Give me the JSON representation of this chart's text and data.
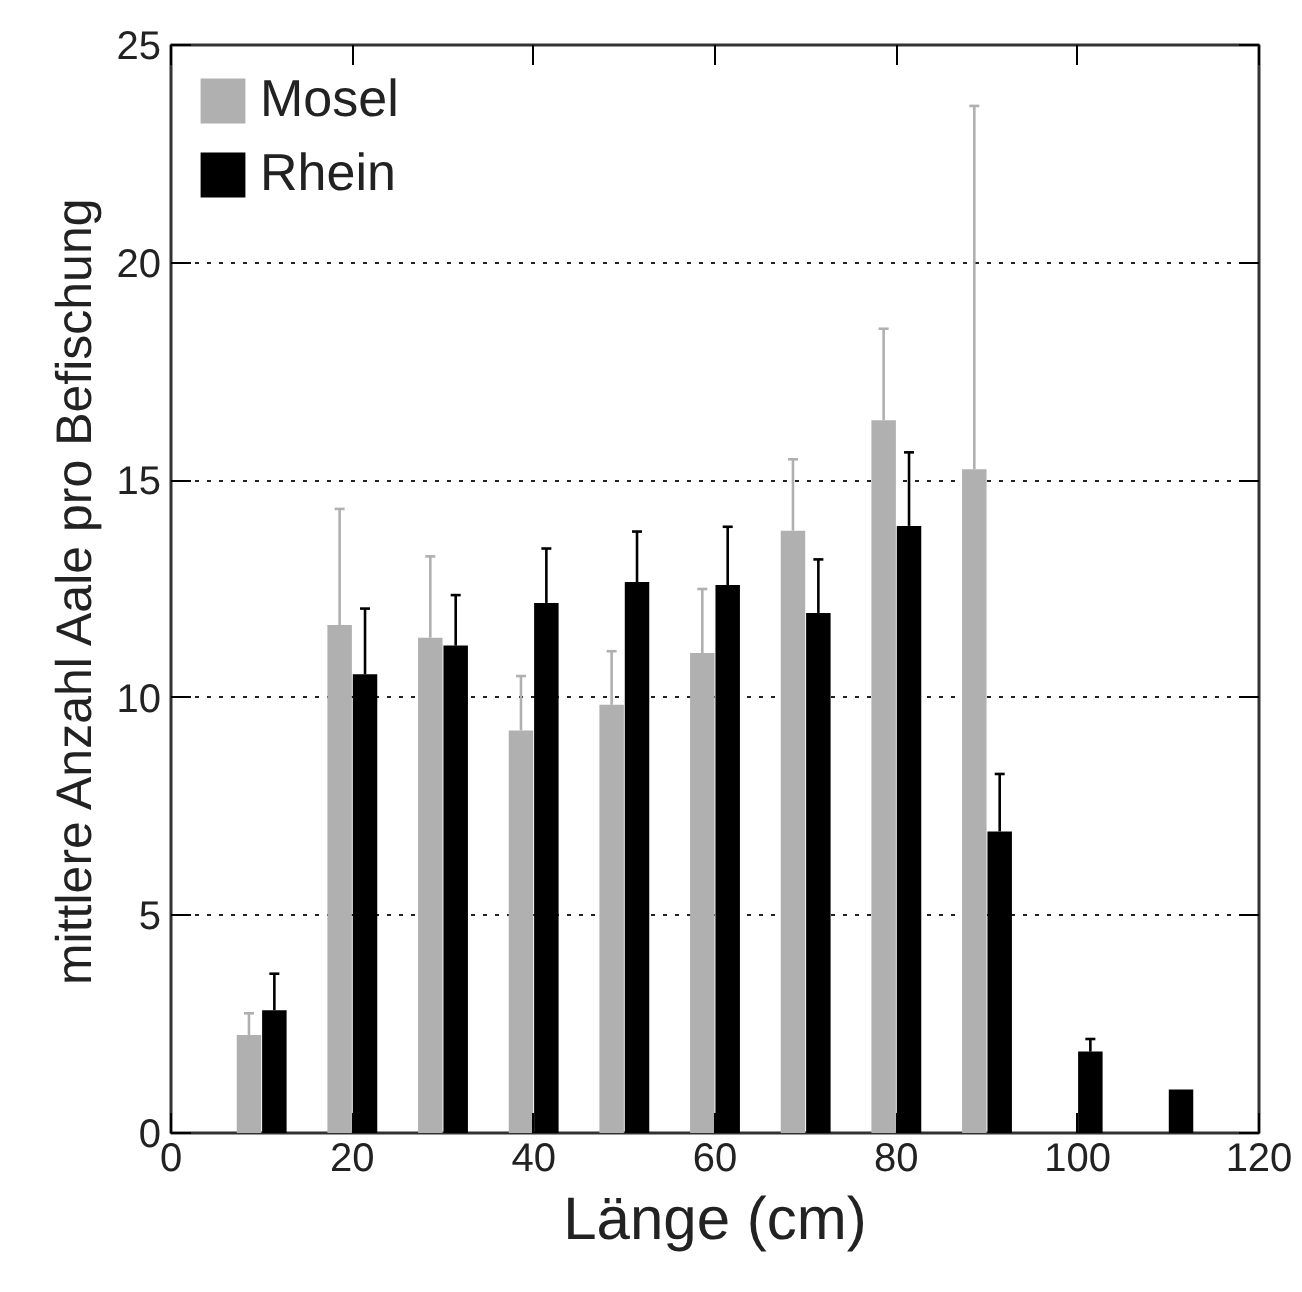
{
  "chart_data": {
    "type": "bar",
    "xlabel": "Länge (cm)",
    "ylabel": "mittlere Anzahl Aale pro Befischung",
    "x": [
      10,
      20,
      30,
      40,
      50,
      60,
      70,
      80,
      90,
      100,
      110
    ],
    "series": [
      {
        "name": "Mosel",
        "color": "#b0b0b0",
        "values": [
          2.25,
          11.67,
          11.38,
          9.25,
          9.84,
          11.03,
          13.84,
          16.38,
          15.25,
          null,
          null
        ],
        "errors": [
          [
            2.25,
            2.75
          ],
          [
            11.67,
            14.34
          ],
          [
            11.38,
            13.25
          ],
          [
            9.25,
            10.5
          ],
          [
            9.84,
            11.07
          ],
          [
            11.03,
            12.5
          ],
          [
            13.84,
            15.48
          ],
          [
            16.38,
            18.48
          ],
          [
            15.25,
            23.6
          ],
          null,
          null
        ]
      },
      {
        "name": "Rhein",
        "color": "#000000",
        "values": [
          2.82,
          10.54,
          11.2,
          12.18,
          12.66,
          12.59,
          11.95,
          13.95,
          6.93,
          1.87,
          1.0
        ],
        "errors": [
          [
            2.82,
            3.66
          ],
          [
            10.54,
            12.05
          ],
          [
            11.2,
            12.36
          ],
          [
            12.18,
            13.43
          ],
          [
            12.66,
            13.82
          ],
          [
            12.59,
            13.93
          ],
          [
            11.95,
            13.18
          ],
          [
            13.95,
            15.64
          ],
          [
            6.93,
            8.25
          ],
          [
            1.87,
            2.16
          ],
          null
        ]
      }
    ],
    "xlim": [
      0,
      120
    ],
    "xticks": [
      0,
      20,
      40,
      60,
      80,
      100,
      120
    ],
    "ylim": [
      0,
      25
    ],
    "yticks": [
      0,
      5,
      10,
      15,
      20,
      25
    ],
    "grid": "y",
    "legend": "top left"
  }
}
